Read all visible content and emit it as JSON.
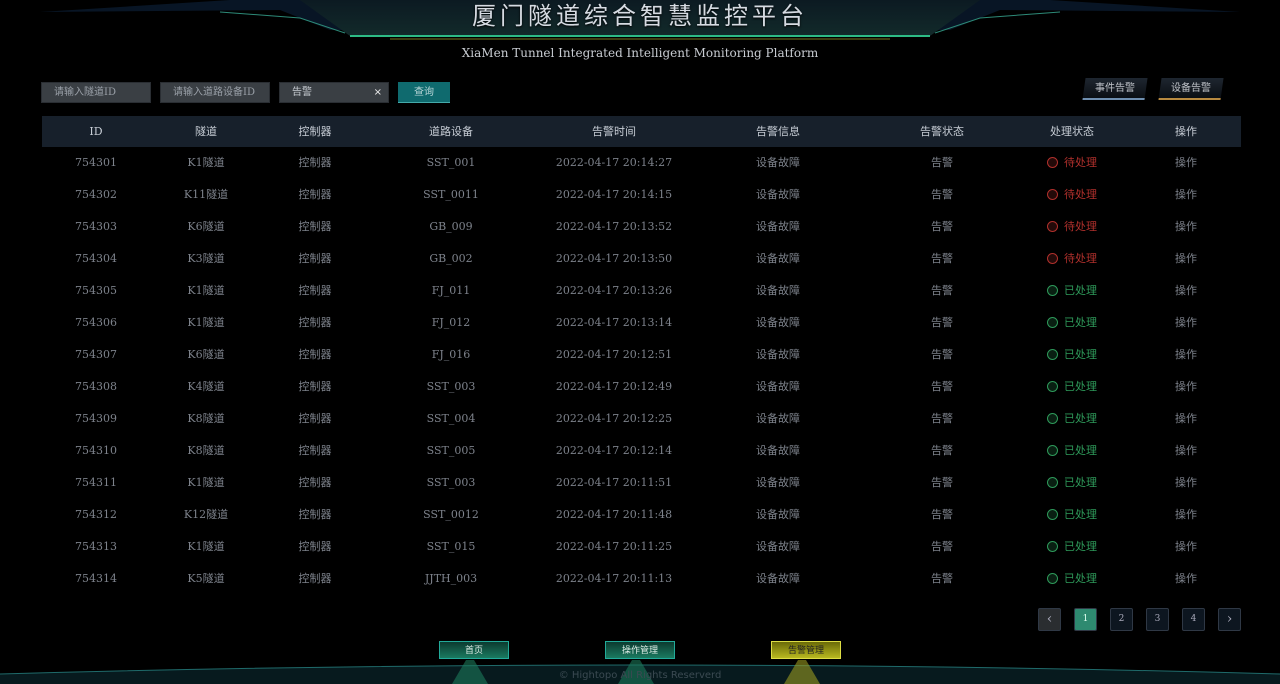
{
  "header": {
    "title": "厦门隧道综合智慧监控平台",
    "subtitle": "XiaMen Tunnel Integrated Intelligent Monitoring Platform"
  },
  "filters": {
    "tunnel_placeholder": "请输入隧道ID",
    "device_placeholder": "请输入道路设备ID",
    "type_value": "告警",
    "clear_icon": "×",
    "query_label": "查询"
  },
  "alarm_tabs": {
    "event": "事件告警",
    "device": "设备告警"
  },
  "table": {
    "columns": [
      "ID",
      "隧道",
      "控制器",
      "道路设备",
      "告警时间",
      "告警信息",
      "告警状态",
      "处理状态",
      "操作"
    ],
    "rows": [
      [
        "754301",
        "K1隧道",
        "控制器",
        "SST_001",
        "2022-04-17 20:14:27",
        "设备故障",
        "告警",
        "待处理",
        "操作"
      ],
      [
        "754302",
        "K11隧道",
        "控制器",
        "SST_0011",
        "2022-04-17 20:14:15",
        "设备故障",
        "告警",
        "待处理",
        "操作"
      ],
      [
        "754303",
        "K6隧道",
        "控制器",
        "GB_009",
        "2022-04-17 20:13:52",
        "设备故障",
        "告警",
        "待处理",
        "操作"
      ],
      [
        "754304",
        "K3隧道",
        "控制器",
        "GB_002",
        "2022-04-17 20:13:50",
        "设备故障",
        "告警",
        "待处理",
        "操作"
      ],
      [
        "754305",
        "K1隧道",
        "控制器",
        "FJ_011",
        "2022-04-17 20:13:26",
        "设备故障",
        "告警",
        "已处理",
        "操作"
      ],
      [
        "754306",
        "K1隧道",
        "控制器",
        "FJ_012",
        "2022-04-17 20:13:14",
        "设备故障",
        "告警",
        "已处理",
        "操作"
      ],
      [
        "754307",
        "K6隧道",
        "控制器",
        "FJ_016",
        "2022-04-17 20:12:51",
        "设备故障",
        "告警",
        "已处理",
        "操作"
      ],
      [
        "754308",
        "K4隧道",
        "控制器",
        "SST_003",
        "2022-04-17 20:12:49",
        "设备故障",
        "告警",
        "已处理",
        "操作"
      ],
      [
        "754309",
        "K8隧道",
        "控制器",
        "SST_004",
        "2022-04-17 20:12:25",
        "设备故障",
        "告警",
        "已处理",
        "操作"
      ],
      [
        "754310",
        "K8隧道",
        "控制器",
        "SST_005",
        "2022-04-17 20:12:14",
        "设备故障",
        "告警",
        "已处理",
        "操作"
      ],
      [
        "754311",
        "K1隧道",
        "控制器",
        "SST_003",
        "2022-04-17 20:11:51",
        "设备故障",
        "告警",
        "已处理",
        "操作"
      ],
      [
        "754312",
        "K12隧道",
        "控制器",
        "SST_0012",
        "2022-04-17 20:11:48",
        "设备故障",
        "告警",
        "已处理",
        "操作"
      ],
      [
        "754313",
        "K1隧道",
        "控制器",
        "SST_015",
        "2022-04-17 20:11:25",
        "设备故障",
        "告警",
        "已处理",
        "操作"
      ],
      [
        "754314",
        "K5隧道",
        "控制器",
        "JJTH_003",
        "2022-04-17 20:11:13",
        "设备故障",
        "告警",
        "已处理",
        "操作"
      ]
    ]
  },
  "status_colors": {
    "待处理": "#b0302c",
    "已处理": "#2e9a5a"
  },
  "pagination": {
    "prev": "‹",
    "pages": [
      "1",
      "2",
      "3",
      "4"
    ],
    "current": "1",
    "next": "›"
  },
  "bottom_nav": {
    "home": "首页",
    "operations": "操作管理",
    "alarms": "告警管理",
    "active": "alarms"
  },
  "footer": {
    "copyright": "© Hightopo All Rights Reserverd"
  }
}
